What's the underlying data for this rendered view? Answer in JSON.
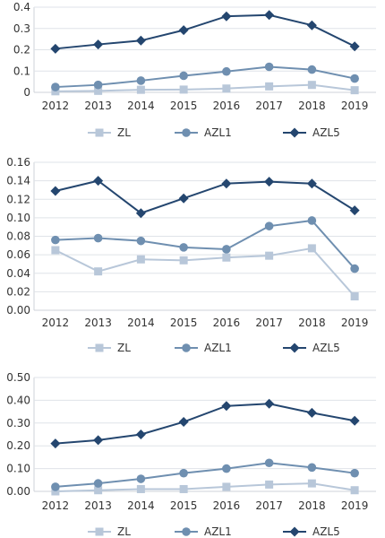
{
  "colors": {
    "ZL": "#b8c7d9",
    "AZL1": "#6f8fb0",
    "AZL5": "#24466f"
  },
  "chart_data": [
    {
      "type": "line",
      "categories": [
        "2012",
        "2013",
        "2014",
        "2015",
        "2016",
        "2017",
        "2018",
        "2019"
      ],
      "ylim": [
        0,
        0.4
      ],
      "yticks": [
        "0",
        "0.1",
        "0.2",
        "0.3",
        "0.4"
      ],
      "grid": true,
      "legend_position": "bottom",
      "series": [
        {
          "name": "ZL",
          "marker": "square",
          "values": [
            0.005,
            0.007,
            0.012,
            0.013,
            0.018,
            0.028,
            0.035,
            0.01
          ]
        },
        {
          "name": "AZL1",
          "marker": "circle",
          "values": [
            0.025,
            0.035,
            0.055,
            0.078,
            0.098,
            0.12,
            0.107,
            0.065
          ]
        },
        {
          "name": "AZL5",
          "marker": "diamond",
          "values": [
            0.205,
            0.225,
            0.243,
            0.292,
            0.357,
            0.363,
            0.315,
            0.216
          ]
        }
      ]
    },
    {
      "type": "line",
      "categories": [
        "2012",
        "2013",
        "2014",
        "2015",
        "2016",
        "2017",
        "2018",
        "2019"
      ],
      "ylim": [
        0,
        0.16
      ],
      "yticks": [
        "0.00",
        "0.02",
        "0.04",
        "0.06",
        "0.08",
        "0.10",
        "0.12",
        "0.14",
        "0.16"
      ],
      "grid": true,
      "legend_position": "bottom",
      "series": [
        {
          "name": "ZL",
          "marker": "square",
          "values": [
            0.065,
            0.042,
            0.055,
            0.054,
            0.057,
            0.059,
            0.067,
            0.015
          ]
        },
        {
          "name": "AZL1",
          "marker": "circle",
          "values": [
            0.076,
            0.078,
            0.075,
            0.068,
            0.066,
            0.091,
            0.097,
            0.045
          ]
        },
        {
          "name": "AZL5",
          "marker": "diamond",
          "values": [
            0.129,
            0.14,
            0.105,
            0.121,
            0.137,
            0.139,
            0.137,
            0.108
          ]
        }
      ]
    },
    {
      "type": "line",
      "categories": [
        "2012",
        "2013",
        "2014",
        "2015",
        "2016",
        "2017",
        "2018",
        "2019"
      ],
      "ylim": [
        0,
        0.5
      ],
      "yticks": [
        "0.00",
        "0.10",
        "0.20",
        "0.30",
        "0.40",
        "0.50"
      ],
      "grid": true,
      "legend_position": "bottom",
      "series": [
        {
          "name": "ZL",
          "marker": "square",
          "values": [
            0.0,
            0.005,
            0.01,
            0.01,
            0.02,
            0.03,
            0.035,
            0.005
          ]
        },
        {
          "name": "AZL1",
          "marker": "circle",
          "values": [
            0.02,
            0.035,
            0.055,
            0.08,
            0.1,
            0.125,
            0.105,
            0.08
          ]
        },
        {
          "name": "AZL5",
          "marker": "diamond",
          "values": [
            0.21,
            0.225,
            0.25,
            0.305,
            0.375,
            0.385,
            0.345,
            0.31
          ]
        }
      ]
    }
  ]
}
